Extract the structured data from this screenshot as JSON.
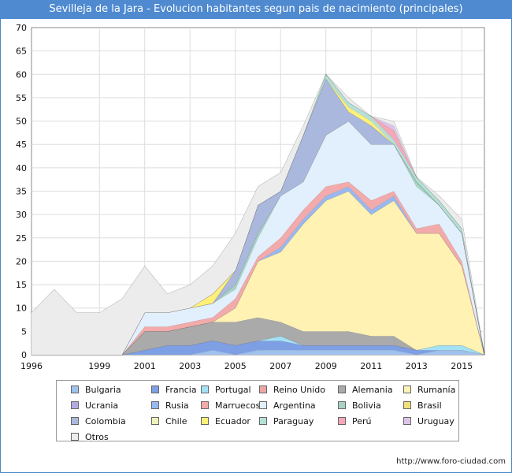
{
  "chart_data": {
    "type": "area",
    "title": "Sevilleja de la Jara - Evolucion habitantes segun pais de nacimiento (principales)",
    "x": [
      1996,
      1997,
      1998,
      1999,
      2000,
      2001,
      2002,
      2003,
      2004,
      2005,
      2006,
      2007,
      2008,
      2009,
      2010,
      2011,
      2012,
      2013,
      2014,
      2015,
      2016
    ],
    "xticks": [
      1996,
      1999,
      2001,
      2003,
      2005,
      2007,
      2009,
      2011,
      2013,
      2015
    ],
    "ylim": [
      0,
      70
    ],
    "yticks": [
      0,
      5,
      10,
      15,
      20,
      25,
      30,
      35,
      40,
      45,
      50,
      55,
      60,
      65,
      70
    ],
    "total": [
      9,
      14,
      9,
      9,
      12,
      19,
      13,
      15,
      19,
      26,
      36,
      39,
      49,
      60,
      55,
      51,
      50,
      38,
      34,
      29,
      0
    ],
    "series": [
      {
        "name": "Bulgaria",
        "color": "#9fc1ec",
        "values": [
          0,
          0,
          0,
          0,
          0,
          0,
          0,
          0,
          1,
          0,
          1,
          1,
          1,
          1,
          1,
          1,
          1,
          0,
          1,
          1,
          0
        ]
      },
      {
        "name": "Francia",
        "color": "#7e9fe4",
        "values": [
          0,
          0,
          0,
          0,
          0,
          1,
          2,
          2,
          2,
          2,
          2,
          2,
          1,
          1,
          1,
          1,
          1,
          1,
          0,
          0,
          0
        ]
      },
      {
        "name": "Portugal",
        "color": "#a3e2f5",
        "values": [
          0,
          0,
          0,
          0,
          0,
          0,
          0,
          0,
          0,
          0,
          0,
          1,
          0,
          0,
          0,
          0,
          0,
          0,
          1,
          1,
          0
        ]
      },
      {
        "name": "Reino Unido",
        "color": "#eda6a6",
        "values": [
          0,
          0,
          0,
          0,
          0,
          0,
          0,
          0,
          0,
          0,
          0,
          0,
          0,
          0,
          0,
          0,
          0,
          0,
          0,
          0,
          0
        ]
      },
      {
        "name": "Alemania",
        "color": "#aaaaaa",
        "values": [
          0,
          0,
          0,
          0,
          0,
          4,
          3,
          4,
          4,
          5,
          5,
          3,
          3,
          3,
          3,
          2,
          2,
          0,
          0,
          0,
          0
        ]
      },
      {
        "name": "Rumanía",
        "color": "#fff2b3",
        "values": [
          0,
          0,
          0,
          0,
          0,
          0,
          0,
          0,
          0,
          3,
          12,
          15,
          23,
          28,
          30,
          26,
          29,
          25,
          24,
          17,
          0
        ]
      },
      {
        "name": "Ucrania",
        "color": "#b5a8e6",
        "values": [
          0,
          0,
          0,
          0,
          0,
          0,
          0,
          0,
          0,
          0,
          0,
          0,
          0,
          0,
          0,
          0,
          0,
          0,
          0,
          0,
          0
        ]
      },
      {
        "name": "Rusia",
        "color": "#99b8f0",
        "values": [
          0,
          0,
          0,
          0,
          0,
          0,
          0,
          0,
          0,
          0,
          0,
          1,
          1,
          1,
          1,
          1,
          1,
          0,
          0,
          0,
          0
        ]
      },
      {
        "name": "Marruecos",
        "color": "#f2aaaa",
        "values": [
          0,
          0,
          0,
          0,
          0,
          1,
          1,
          1,
          1,
          2,
          1,
          2,
          2,
          2,
          1,
          2,
          1,
          1,
          2,
          1,
          0
        ]
      },
      {
        "name": "Argentina",
        "color": "#e2effc",
        "values": [
          0,
          0,
          0,
          0,
          0,
          3,
          3,
          3,
          3,
          2,
          4,
          9,
          6,
          11,
          13,
          12,
          10,
          9,
          4,
          6,
          0
        ]
      },
      {
        "name": "Bolivia",
        "color": "#a6d4c4",
        "values": [
          0,
          0,
          0,
          0,
          0,
          0,
          0,
          0,
          0,
          1,
          1,
          0,
          0,
          0,
          0,
          0,
          0,
          1,
          0,
          0,
          0
        ]
      },
      {
        "name": "Brasil",
        "color": "#f0e07c",
        "values": [
          0,
          0,
          0,
          0,
          0,
          0,
          0,
          0,
          0,
          0,
          0,
          0,
          0,
          0,
          0,
          0,
          0,
          0,
          0,
          0,
          0
        ]
      },
      {
        "name": "Colombia",
        "color": "#a9b8dc",
        "values": [
          0,
          0,
          0,
          0,
          0,
          0,
          0,
          0,
          0,
          3,
          6,
          1,
          10,
          12,
          2,
          4,
          0,
          0,
          0,
          0,
          0
        ]
      },
      {
        "name": "Chile",
        "color": "#eef2b8",
        "values": [
          0,
          0,
          0,
          0,
          0,
          0,
          0,
          0,
          0,
          0,
          0,
          0,
          0,
          0,
          0,
          0,
          0,
          0,
          0,
          0,
          0
        ]
      },
      {
        "name": "Ecuador",
        "color": "#fff07a",
        "values": [
          0,
          0,
          0,
          0,
          0,
          0,
          0,
          0,
          2,
          0,
          0,
          0,
          0,
          0,
          1,
          1,
          0,
          0,
          0,
          0,
          0
        ]
      },
      {
        "name": "Paraguay",
        "color": "#b4e0d6",
        "values": [
          0,
          0,
          0,
          0,
          0,
          0,
          0,
          0,
          0,
          0,
          0,
          0,
          0,
          1,
          1,
          1,
          1,
          1,
          1,
          1,
          0
        ]
      },
      {
        "name": "Perú",
        "color": "#f4a8b8",
        "values": [
          0,
          0,
          0,
          0,
          0,
          0,
          0,
          0,
          0,
          0,
          0,
          0,
          0,
          0,
          0,
          0,
          2,
          0,
          0,
          0,
          0
        ]
      },
      {
        "name": "Uruguay",
        "color": "#dcc4e8",
        "values": [
          0,
          0,
          0,
          0,
          0,
          0,
          0,
          0,
          0,
          0,
          0,
          0,
          0,
          0,
          0,
          0,
          1,
          0,
          0,
          0,
          0
        ]
      },
      {
        "name": "Otros",
        "color": "#ececec",
        "values": [
          9,
          14,
          9,
          9,
          12,
          10,
          4,
          5,
          6,
          8,
          4,
          4,
          2,
          0,
          1,
          0,
          1,
          0,
          1,
          2,
          0
        ]
      }
    ],
    "legend_position": "bottom",
    "source": "http://www.foro-ciudad.com"
  }
}
